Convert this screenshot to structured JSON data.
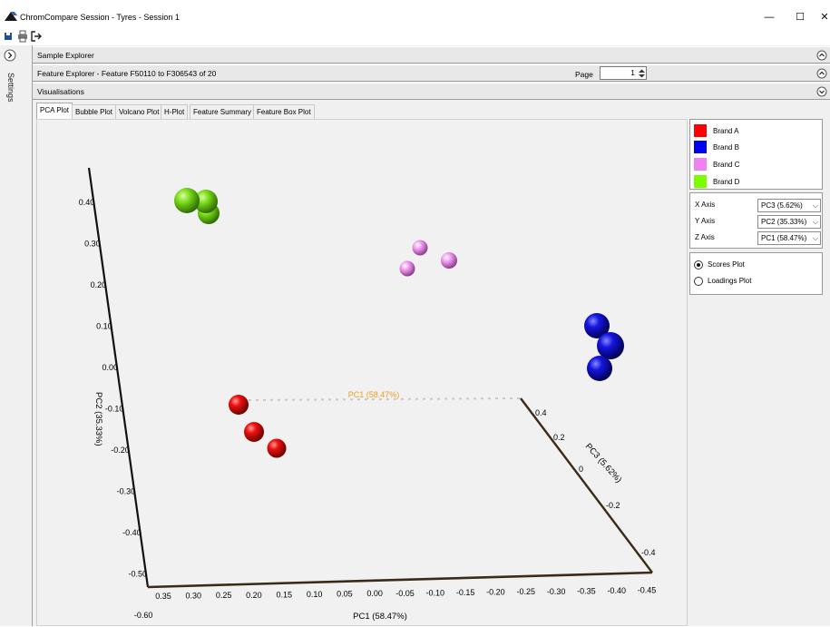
{
  "window": {
    "title": "ChromCompare Session - Tyres - Session 1",
    "minimize": "—",
    "maximize": "☐",
    "close": "✕"
  },
  "rail": {
    "label": "Settings"
  },
  "sections": {
    "sample_explorer": "Sample Explorer",
    "feature_explorer": "Feature Explorer - Feature F50110 to F306543 of 20",
    "page_label": "Page",
    "page_value": "1",
    "visualisations": "Visualisations"
  },
  "tabs": [
    {
      "label": "PCA Plot",
      "active": true
    },
    {
      "label": "Bubble Plot",
      "active": false
    },
    {
      "label": "Volcano Plot",
      "active": false
    },
    {
      "label": "H-Plot",
      "active": false
    },
    {
      "label": "Feature Summary",
      "active": false
    },
    {
      "label": "Feature Box Plot",
      "active": false
    }
  ],
  "legend": [
    {
      "label": "Brand A",
      "color": "#ff0000"
    },
    {
      "label": "Brand B",
      "color": "#0000ee"
    },
    {
      "label": "Brand C",
      "color": "#ee82ee"
    },
    {
      "label": "Brand D",
      "color": "#7cfc00"
    }
  ],
  "axes_config": [
    {
      "label": "X Axis",
      "value": "PC3 (5.62%)"
    },
    {
      "label": "Y Axis",
      "value": "PC2 (35.33%)"
    },
    {
      "label": "Z Axis",
      "value": "PC1 (58.47%)"
    }
  ],
  "plot_mode": [
    {
      "label": "Scores Plot",
      "selected": true
    },
    {
      "label": "Loadings Plot",
      "selected": false
    }
  ],
  "chart": {
    "y_axis_title": "PC2 (35.33%)",
    "y_ticks": [
      "0.40",
      "0.30",
      "0.20",
      "0.10",
      "0.00",
      "-0.10",
      "-0.20",
      "-0.30",
      "-0.40",
      "-0.50",
      "-0.60"
    ],
    "x_axis_title": "PC1 (58.47%)",
    "x_ticks": [
      "0.35",
      "0.30",
      "0.25",
      "0.20",
      "0.15",
      "0.10",
      "0.05",
      "0.00",
      "-0.05",
      "-0.10",
      "-0.15",
      "-0.20",
      "-0.25",
      "-0.30",
      "-0.35",
      "-0.40",
      "-0.45"
    ],
    "z_axis_title": "PC3 (5.62%)",
    "z_ticks": [
      "0.4",
      "0.2",
      "0",
      "-0.2",
      "-0.4"
    ],
    "back_axis_title": "PC1 (58.47%)"
  }
}
